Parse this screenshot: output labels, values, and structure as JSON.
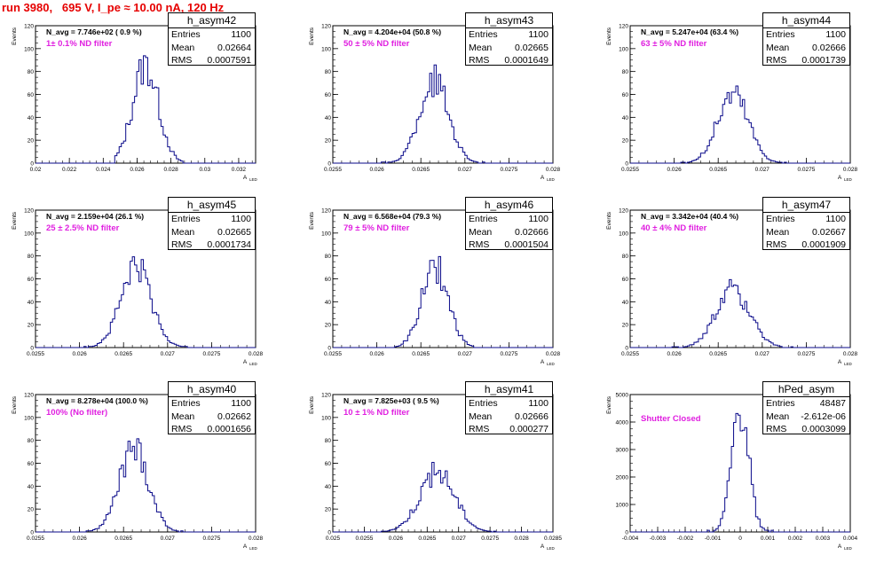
{
  "title": "run 3980,   695 V, I_pe ≈ 10.00 nA, 120 Hz",
  "axis_y_label": "Events",
  "axis_x_label": "A",
  "axis_x_sub": "LED",
  "stat_labels": {
    "entries": "Entries",
    "mean": "Mean",
    "rms": "RMS"
  },
  "chart_data": [
    {
      "type": "bar",
      "name": "h_asym42",
      "n_avg": "N_avg = 7.746e+02 ( 0.9 %)",
      "filter": "1± 0.1% ND filter",
      "entries": "1100",
      "mean": "0.02664",
      "rms": "0.0007591",
      "xlim": [
        0.02,
        0.033
      ],
      "ylim": [
        0,
        120
      ],
      "xticks": [
        "0.02",
        "0.022",
        "0.024",
        "0.026",
        "0.028",
        "0.03",
        "0.032"
      ],
      "xtick_values": [
        0.02,
        0.022,
        0.024,
        0.026,
        0.028,
        0.03,
        0.032
      ],
      "yticks": [
        "0",
        "20",
        "40",
        "60",
        "80",
        "100",
        "120"
      ],
      "peak_x": 0.0265,
      "peak_y": 94,
      "sigma": 0.00076,
      "x_range": [
        0.0247,
        0.0287
      ]
    },
    {
      "type": "bar",
      "name": "h_asym43",
      "n_avg": "N_avg = 4.204e+04 (50.8 %)",
      "filter": "50 ± 5% ND filter",
      "entries": "1100",
      "mean": "0.02665",
      "rms": "0.0001649",
      "xlim": [
        0.0255,
        0.028
      ],
      "ylim": [
        0,
        120
      ],
      "xticks": [
        "0.0255",
        "0.026",
        "0.0265",
        "0.027",
        "0.0275",
        "0.028"
      ],
      "xtick_values": [
        0.0255,
        0.026,
        0.0265,
        0.027,
        0.0275,
        0.028
      ],
      "yticks": [
        "0",
        "20",
        "40",
        "60",
        "80",
        "100",
        "120"
      ],
      "peak_x": 0.02665,
      "peak_y": 79,
      "sigma": 0.000165,
      "x_range": [
        0.02605,
        0.02722
      ]
    },
    {
      "type": "bar",
      "name": "h_asym44",
      "n_avg": "N_avg = 5.247e+04 (63.4 %)",
      "filter": "63 ± 5% ND filter",
      "entries": "1100",
      "mean": "0.02666",
      "rms": "0.0001739",
      "xlim": [
        0.0255,
        0.028
      ],
      "ylim": [
        0,
        120
      ],
      "xticks": [
        "0.0255",
        "0.026",
        "0.0265",
        "0.027",
        "0.0275",
        "0.028"
      ],
      "xtick_values": [
        0.0255,
        0.026,
        0.0265,
        0.027,
        0.0275,
        0.028
      ],
      "yticks": [
        "0",
        "20",
        "40",
        "60",
        "80",
        "100",
        "120"
      ],
      "peak_x": 0.02667,
      "peak_y": 67,
      "sigma": 0.000174,
      "x_range": [
        0.02605,
        0.02728
      ]
    },
    {
      "type": "bar",
      "name": "h_asym45",
      "n_avg": "N_avg = 2.159e+04 (26.1 %)",
      "filter": "25 ± 2.5% ND filter",
      "entries": "1100",
      "mean": "0.02665",
      "rms": "0.0001734",
      "xlim": [
        0.0255,
        0.028
      ],
      "ylim": [
        0,
        120
      ],
      "xticks": [
        "0.0255",
        "0.026",
        "0.0265",
        "0.027",
        "0.0275",
        "0.028"
      ],
      "xtick_values": [
        0.0255,
        0.026,
        0.0265,
        0.027,
        0.0275,
        0.028
      ],
      "yticks": [
        "0",
        "20",
        "40",
        "60",
        "80",
        "100",
        "120"
      ],
      "peak_x": 0.02664,
      "peak_y": 78,
      "sigma": 0.000173,
      "x_range": [
        0.02604,
        0.02723
      ]
    },
    {
      "type": "bar",
      "name": "h_asym46",
      "n_avg": "N_avg = 6.568e+04 (79.3 %)",
      "filter": "79 ± 5% ND filter",
      "entries": "1100",
      "mean": "0.02666",
      "rms": "0.0001504",
      "xlim": [
        0.0255,
        0.028
      ],
      "ylim": [
        0,
        120
      ],
      "xticks": [
        "0.0255",
        "0.026",
        "0.0265",
        "0.027",
        "0.0275",
        "0.028"
      ],
      "xtick_values": [
        0.0255,
        0.026,
        0.0265,
        0.027,
        0.0275,
        0.028
      ],
      "yticks": [
        "0",
        "20",
        "40",
        "60",
        "80",
        "100",
        "120"
      ],
      "peak_x": 0.02666,
      "peak_y": 77,
      "sigma": 0.00015,
      "x_range": [
        0.02614,
        0.02718
      ]
    },
    {
      "type": "bar",
      "name": "h_asym47",
      "n_avg": "N_avg = 3.342e+04 (40.4 %)",
      "filter": "40 ± 4% ND filter",
      "entries": "1100",
      "mean": "0.02667",
      "rms": "0.0001909",
      "xlim": [
        0.0255,
        0.028
      ],
      "ylim": [
        0,
        120
      ],
      "xticks": [
        "0.0255",
        "0.026",
        "0.0265",
        "0.027",
        "0.0275",
        "0.028"
      ],
      "xtick_values": [
        0.0255,
        0.026,
        0.0265,
        0.027,
        0.0275,
        0.028
      ],
      "yticks": [
        "0",
        "20",
        "40",
        "60",
        "80",
        "100",
        "120"
      ],
      "peak_x": 0.02667,
      "peak_y": 56,
      "sigma": 0.00019,
      "x_range": [
        0.02598,
        0.02734
      ]
    },
    {
      "type": "bar",
      "name": "h_asym40",
      "n_avg": "N_avg = 8.278e+04 (100.0 %)",
      "filter": "100% (No filter)",
      "entries": "1100",
      "mean": "0.02662",
      "rms": "0.0001656",
      "xlim": [
        0.0255,
        0.028
      ],
      "ylim": [
        0,
        120
      ],
      "xticks": [
        "0.0255",
        "0.026",
        "0.0265",
        "0.027",
        "0.0275",
        "0.028"
      ],
      "xtick_values": [
        0.0255,
        0.026,
        0.0265,
        0.027,
        0.0275,
        0.028
      ],
      "yticks": [
        "0",
        "20",
        "40",
        "60",
        "80",
        "100",
        "120"
      ],
      "peak_x": 0.02662,
      "peak_y": 81,
      "sigma": 0.000166,
      "x_range": [
        0.02605,
        0.02718
      ]
    },
    {
      "type": "bar",
      "name": "h_asym41",
      "n_avg": "N_avg = 7.825e+03 ( 9.5 %)",
      "filter": "10 ± 1% ND filter",
      "entries": "1100",
      "mean": "0.02666",
      "rms": "0.000277",
      "xlim": [
        0.025,
        0.0285
      ],
      "ylim": [
        0,
        120
      ],
      "xticks": [
        "0.025",
        "0.0255",
        "0.026",
        "0.0265",
        "0.027",
        "0.0275",
        "0.028",
        "0.0285"
      ],
      "xtick_values": [
        0.025,
        0.0255,
        0.026,
        0.0265,
        0.027,
        0.0275,
        0.028,
        0.0285
      ],
      "yticks": [
        "0",
        "20",
        "40",
        "60",
        "80",
        "100",
        "120"
      ],
      "peak_x": 0.02666,
      "peak_y": 57,
      "sigma": 0.000277,
      "x_range": [
        0.02575,
        0.02758
      ]
    },
    {
      "type": "bar",
      "name": "hPed_asym",
      "n_avg": "",
      "filter": "Shutter Closed",
      "entries": "48487",
      "mean": "-2.612e-06",
      "rms": "0.0003099",
      "xlim": [
        -0.004,
        0.004
      ],
      "ylim": [
        0,
        5000
      ],
      "xticks": [
        "-0.004",
        "-0.003",
        "-0.002",
        "-0.001",
        "0",
        "0.001",
        "0.002",
        "0.003",
        "0.004"
      ],
      "xtick_values": [
        -0.004,
        -0.003,
        -0.002,
        -0.001,
        0,
        0.001,
        0.002,
        0.003,
        0.004
      ],
      "yticks": [
        "0",
        "1000",
        "2000",
        "3000",
        "4000",
        "5000"
      ],
      "peak_x": 0.0,
      "peak_y": 4950,
      "sigma": 0.00031,
      "x_range": [
        -0.0012,
        0.0012
      ]
    }
  ]
}
